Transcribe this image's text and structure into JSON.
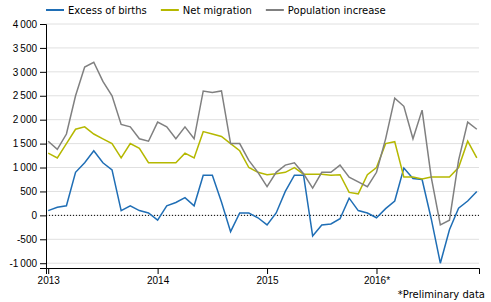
{
  "chart_data": {
    "type": "line",
    "annotations": [
      "*Preliminary data"
    ],
    "x": [
      2013,
      2013.083334,
      2013.166668,
      2013.250002,
      2013.333336,
      2013.41667,
      2013.500004,
      2013.583338,
      2013.666672,
      2013.750006,
      2013.83334,
      2013.916674,
      2014.000009,
      2014.083343,
      2014.166677,
      2014.250011,
      2014.333345,
      2014.416679,
      2014.500013,
      2014.583347,
      2014.666681,
      2014.750015,
      2014.833349,
      2014.916683,
      2015.000017,
      2015.083351,
      2015.166685,
      2015.250019,
      2015.333353,
      2015.416687,
      2015.500021,
      2015.583355,
      2015.666689,
      2015.750023,
      2015.833357,
      2015.916691,
      2016.000026,
      2016.08336,
      2016.166694,
      2016.250028,
      2016.333362,
      2016.416696,
      2016.50003,
      2016.583364,
      2016.666698,
      2016.750032,
      2016.833366,
      2016.9167
    ],
    "series": [
      {
        "name": "Excess of births",
        "color": "#1f6eb5",
        "values": [
          100,
          170,
          200,
          900,
          1100,
          1350,
          1100,
          950,
          100,
          200,
          100,
          50,
          -100,
          200,
          270,
          370,
          200,
          840,
          840,
          280,
          -340,
          50,
          50,
          -50,
          -200,
          50,
          500,
          840,
          840,
          -430,
          -200,
          -180,
          -70,
          360,
          100,
          50,
          -50,
          140,
          300,
          990,
          770,
          750,
          -70,
          -1000,
          -300,
          150,
          300,
          500
        ]
      },
      {
        "name": "Net migration",
        "color": "#b5b800",
        "values": [
          1300,
          1200,
          1500,
          1800,
          1850,
          1700,
          1600,
          1500,
          1200,
          1500,
          1400,
          1100,
          1100,
          1100,
          1100,
          1300,
          1200,
          1750,
          1700,
          1650,
          1500,
          1350,
          1000,
          900,
          850,
          870,
          900,
          1000,
          860,
          860,
          860,
          840,
          850,
          480,
          450,
          850,
          1000,
          1500,
          1540,
          800,
          800,
          760,
          800,
          800,
          800,
          1000,
          1550,
          1200
        ]
      },
      {
        "name": "Population increase",
        "color": "#808080",
        "values": [
          1550,
          1380,
          1700,
          2500,
          3100,
          3200,
          2800,
          2500,
          1900,
          1850,
          1600,
          1550,
          1950,
          1850,
          1600,
          1850,
          1600,
          2600,
          2570,
          2600,
          1500,
          1500,
          1150,
          900,
          600,
          900,
          1050,
          1100,
          870,
          570,
          900,
          900,
          1050,
          800,
          700,
          600,
          900,
          1600,
          2450,
          2280,
          1600,
          2200,
          800,
          -200,
          -100,
          1150,
          1950,
          1800
        ]
      }
    ],
    "xlim": [
      2012.98,
      2016.9367
    ],
    "xticks": [
      2013,
      2014,
      2015,
      {
        "value": 2016,
        "label": "2016*"
      }
    ],
    "ylim": [
      -1100,
      4000
    ],
    "yticks": [
      {
        "value": -1000,
        "label": "-1 000"
      },
      -500,
      0,
      500,
      {
        "value": 1000,
        "label": "1 000"
      },
      {
        "value": 1500,
        "label": "1 500"
      },
      {
        "value": 2000,
        "label": "2 000"
      },
      {
        "value": 2500,
        "label": "2 500"
      },
      {
        "value": 3000,
        "label": "3 000"
      },
      {
        "value": 3500,
        "label": "3 500"
      },
      {
        "value": 4000,
        "label": "4 000"
      }
    ],
    "grid": true,
    "legend": "top"
  }
}
